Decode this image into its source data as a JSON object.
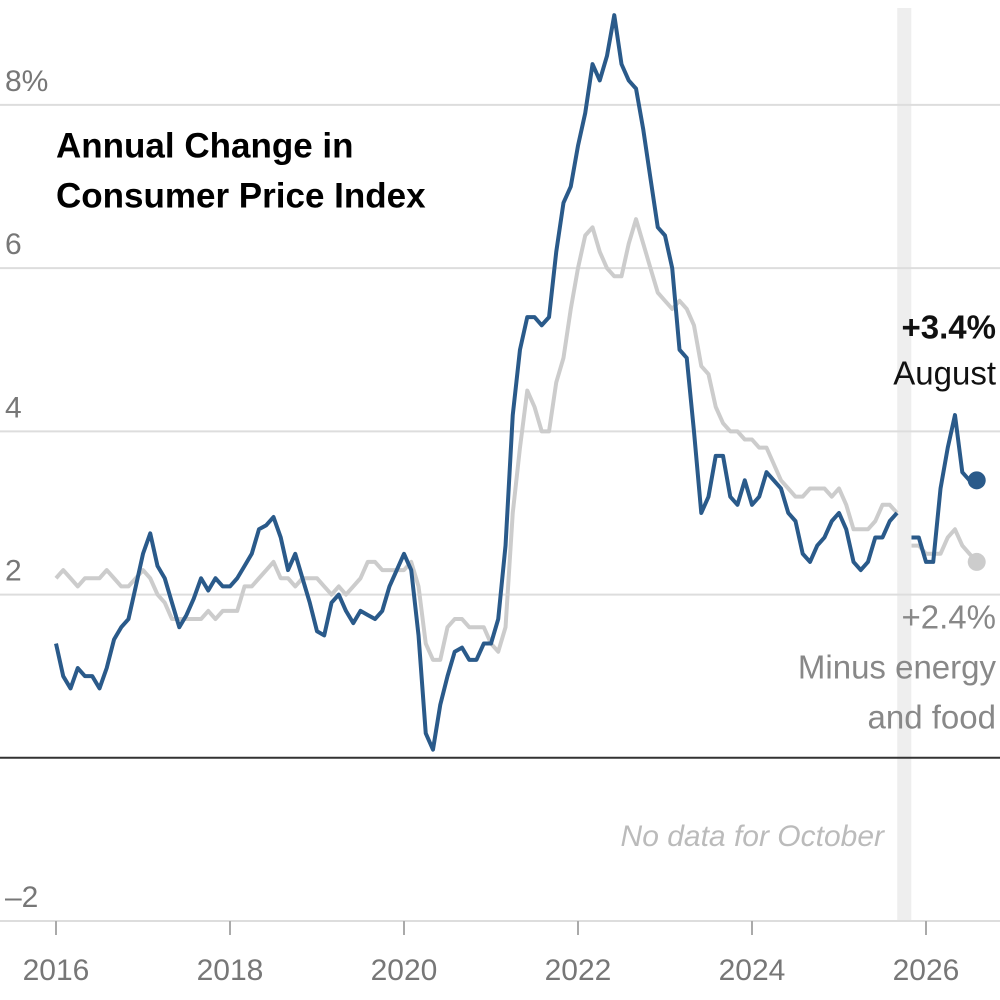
{
  "chart_data": {
    "type": "line",
    "title": [
      "Annual Change in",
      "Consumer Price Index"
    ],
    "x": [
      2016,
      2016.083,
      2016.167,
      2016.25,
      2016.333,
      2016.417,
      2016.5,
      2016.583,
      2016.667,
      2016.75,
      2016.833,
      2016.917,
      2017,
      2017.083,
      2017.167,
      2017.25,
      2017.333,
      2017.417,
      2017.5,
      2017.583,
      2017.667,
      2017.75,
      2017.833,
      2017.917,
      2018,
      2018.083,
      2018.167,
      2018.25,
      2018.333,
      2018.417,
      2018.5,
      2018.583,
      2018.667,
      2018.75,
      2018.833,
      2018.917,
      2019,
      2019.083,
      2019.167,
      2019.25,
      2019.333,
      2019.417,
      2019.5,
      2019.583,
      2019.667,
      2019.75,
      2019.833,
      2019.917,
      2020,
      2020.083,
      2020.167,
      2020.25,
      2020.333,
      2020.417,
      2020.5,
      2020.583,
      2020.667,
      2020.75,
      2020.833,
      2020.917,
      2021,
      2021.083,
      2021.167,
      2021.25,
      2021.333,
      2021.417,
      2021.5,
      2021.583,
      2021.667,
      2021.75,
      2021.833,
      2021.917,
      2022,
      2022.083,
      2022.167,
      2022.25,
      2022.333,
      2022.417,
      2022.5,
      2022.583,
      2022.667,
      2022.75,
      2022.833,
      2022.917,
      2023,
      2023.083,
      2023.167,
      2023.25,
      2023.333,
      2023.417,
      2023.5,
      2023.583,
      2023.667,
      2023.75,
      2023.833,
      2023.917,
      2024,
      2024.083,
      2024.167,
      2024.25,
      2024.333,
      2024.417,
      2024.5,
      2024.583,
      2024.667,
      2024.75,
      2024.833,
      2024.917,
      2025,
      2025.083,
      2025.167,
      2025.25,
      2025.333,
      2025.417,
      2025.5,
      2025.583,
      2025.667,
      2025.75,
      2025.833,
      2025.917,
      2026,
      2026.083,
      2026.167,
      2026.25,
      2026.333,
      2026.417,
      2026.5,
      2026.583
    ],
    "series": [
      {
        "color": "#cccccc",
        "values": [
          2.2,
          2.3,
          2.2,
          2.1,
          2.2,
          2.2,
          2.2,
          2.3,
          2.2,
          2.1,
          2.1,
          2.2,
          2.3,
          2.2,
          2.0,
          1.9,
          1.7,
          1.7,
          1.7,
          1.7,
          1.7,
          1.8,
          1.7,
          1.8,
          1.8,
          1.8,
          2.1,
          2.1,
          2.2,
          2.3,
          2.4,
          2.2,
          2.2,
          2.1,
          2.2,
          2.2,
          2.2,
          2.1,
          2.0,
          2.1,
          2.0,
          2.1,
          2.2,
          2.4,
          2.4,
          2.3,
          2.3,
          2.3,
          2.3,
          2.4,
          2.1,
          1.4,
          1.2,
          1.2,
          1.6,
          1.7,
          1.7,
          1.6,
          1.6,
          1.6,
          1.4,
          1.3,
          1.6,
          3.0,
          3.8,
          4.5,
          4.3,
          4.0,
          4.0,
          4.6,
          4.9,
          5.5,
          6.0,
          6.4,
          6.5,
          6.2,
          6.0,
          5.9,
          5.9,
          6.3,
          6.6,
          6.3,
          6.0,
          5.7,
          5.6,
          5.5,
          5.6,
          5.5,
          5.3,
          4.8,
          4.7,
          4.3,
          4.1,
          4.0,
          4.0,
          3.9,
          3.9,
          3.8,
          3.8,
          3.6,
          3.4,
          3.3,
          3.2,
          3.2,
          3.3,
          3.3,
          3.3,
          3.2,
          3.3,
          3.1,
          2.8,
          2.8,
          2.8,
          2.9,
          3.1,
          3.1,
          3.0,
          null,
          2.6,
          2.6,
          2.5,
          2.5,
          2.5,
          2.7,
          2.8,
          2.6,
          2.5,
          2.4
        ]
      },
      {
        "color": "#2a5a8a",
        "values": [
          1.4,
          1.0,
          0.85,
          1.1,
          1.0,
          1.0,
          0.85,
          1.1,
          1.45,
          1.6,
          1.7,
          2.1,
          2.5,
          2.75,
          2.35,
          2.2,
          1.9,
          1.6,
          1.75,
          1.95,
          2.2,
          2.05,
          2.2,
          2.1,
          2.1,
          2.2,
          2.35,
          2.5,
          2.8,
          2.85,
          2.95,
          2.7,
          2.3,
          2.5,
          2.2,
          1.9,
          1.55,
          1.5,
          1.9,
          2.0,
          1.8,
          1.65,
          1.8,
          1.75,
          1.7,
          1.8,
          2.1,
          2.3,
          2.5,
          2.3,
          1.5,
          0.3,
          0.1,
          0.65,
          1.0,
          1.3,
          1.35,
          1.2,
          1.2,
          1.4,
          1.4,
          1.7,
          2.6,
          4.2,
          5.0,
          5.4,
          5.4,
          5.3,
          5.4,
          6.2,
          6.8,
          7.0,
          7.5,
          7.9,
          8.5,
          8.3,
          8.6,
          9.1,
          8.5,
          8.3,
          8.2,
          7.7,
          7.1,
          6.5,
          6.4,
          6.0,
          5.0,
          4.9,
          4.0,
          3.0,
          3.2,
          3.7,
          3.7,
          3.2,
          3.1,
          3.4,
          3.1,
          3.2,
          3.5,
          3.4,
          3.3,
          3.0,
          2.9,
          2.5,
          2.4,
          2.6,
          2.7,
          2.9,
          3.0,
          2.8,
          2.4,
          2.3,
          2.4,
          2.7,
          2.7,
          2.9,
          3.0,
          null,
          2.7,
          2.7,
          2.4,
          2.4,
          3.3,
          3.8,
          4.2,
          3.5,
          3.4,
          3.4
        ]
      }
    ],
    "annotations": [
      {
        "lines": [
          "+3.4%",
          "August"
        ]
      },
      {
        "lines": [
          "+2.4%",
          "Minus energy",
          "and food"
        ]
      },
      {
        "lines": [
          "No data for October"
        ]
      }
    ],
    "highlight_x": 2025.75,
    "xlim": [
      2016,
      2026.8
    ],
    "xticks": [
      2016,
      2018,
      2020,
      2022,
      2024,
      2026
    ],
    "ylim": [
      -2,
      9.2
    ],
    "yticks": [
      {
        "value": -2,
        "label": "–2"
      },
      2,
      4,
      6,
      {
        "value": 8,
        "label": "8%"
      }
    ],
    "grid": true
  }
}
